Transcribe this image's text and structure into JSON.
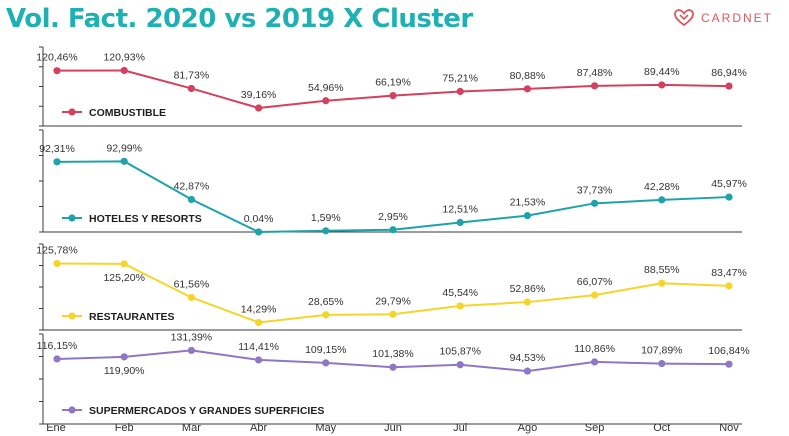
{
  "header": {
    "title": "Vol. Fact. 2020 vs 2019 X Cluster",
    "logo_text": "CARDNET",
    "logo_icon": "cardnet-heart-logo-icon"
  },
  "colors": {
    "title": "#1fb0b4",
    "logo": "#d9595e",
    "axis": "#3a3a3a"
  },
  "chart_data": {
    "type": "line",
    "categories": [
      "Ene",
      "Feb",
      "Mar",
      "Abr",
      "May",
      "Jun",
      "Jul",
      "Ago",
      "Sep",
      "Oct",
      "Nov"
    ],
    "ylabel": "",
    "grid": false,
    "series": [
      {
        "name": "COMBUSTIBLE",
        "color": "#d3415f",
        "values": [
          120.46,
          120.93,
          81.73,
          39.16,
          54.96,
          66.19,
          75.21,
          80.88,
          87.48,
          89.44,
          86.94
        ],
        "labels": [
          "120,46%",
          "120,93%",
          "81,73%",
          "39,16%",
          "54,96%",
          "66,19%",
          "75,21%",
          "80,88%",
          "87,48%",
          "89,44%",
          "86,94%"
        ],
        "ylim": [
          0,
          135
        ]
      },
      {
        "name": "HOTELES Y RESORTS",
        "color": "#1fa3a8",
        "values": [
          92.31,
          92.99,
          42.87,
          0.04,
          1.59,
          2.95,
          12.51,
          21.53,
          37.73,
          42.28,
          45.97
        ],
        "labels": [
          "92,31%",
          "92,99%",
          "42,87%",
          "0,04%",
          "1,59%",
          "2,95%",
          "12,51%",
          "21,53%",
          "37,73%",
          "42,28%",
          "45,97%"
        ],
        "ylim": [
          0,
          100
        ]
      },
      {
        "name": "RESTAURANTES",
        "color": "#f5d52b",
        "values": [
          125.78,
          125.2,
          61.56,
          14.29,
          28.65,
          29.79,
          45.54,
          52.86,
          66.07,
          88.55,
          83.47
        ],
        "labels": [
          "125,78%",
          "125,20%",
          "61,56%",
          "14,29%",
          "28,65%",
          "29,79%",
          "45,54%",
          "52,86%",
          "66,07%",
          "88,55%",
          "83,47%"
        ],
        "ylim": [
          0,
          140
        ]
      },
      {
        "name": "SUPERMERCADOS Y GRANDES SUPERFICIES",
        "color": "#8e77c4",
        "values": [
          116.15,
          119.9,
          131.39,
          114.41,
          109.15,
          101.38,
          105.87,
          94.53,
          110.86,
          107.89,
          106.84
        ],
        "labels": [
          "116,15%",
          "119,90%",
          "131,39%",
          "114,41%",
          "109,15%",
          "101,38%",
          "105,87%",
          "94,53%",
          "110,86%",
          "107,89%",
          "106,84%"
        ],
        "ylim": [
          0,
          150
        ]
      }
    ]
  }
}
